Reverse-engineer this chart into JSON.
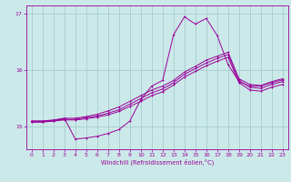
{
  "xlabel": "Windchill (Refroidissement éolien,°C)",
  "bg_color": "#cce9e9",
  "grid_color": "#aad0d0",
  "line_color": "#990099",
  "xlim": [
    -0.5,
    23.5
  ],
  "ylim": [
    14.6,
    17.15
  ],
  "yticks": [
    15,
    16,
    17
  ],
  "xticks": [
    0,
    1,
    2,
    3,
    4,
    5,
    6,
    7,
    8,
    9,
    10,
    11,
    12,
    13,
    14,
    15,
    16,
    17,
    18,
    19,
    20,
    21,
    22,
    23
  ],
  "series": [
    {
      "x": [
        0,
        1,
        2,
        3,
        4,
        5,
        6,
        7,
        8,
        9,
        10,
        11,
        12,
        13,
        14,
        15,
        16,
        17,
        18,
        19,
        20,
        21,
        22,
        23
      ],
      "y": [
        15.1,
        15.1,
        15.1,
        15.15,
        14.78,
        14.8,
        14.83,
        14.88,
        14.95,
        15.1,
        15.48,
        15.72,
        15.82,
        16.63,
        16.95,
        16.82,
        16.92,
        16.62,
        16.1,
        15.8,
        15.72,
        15.72,
        15.78,
        15.83
      ]
    },
    {
      "x": [
        0,
        1,
        2,
        3,
        4,
        5,
        6,
        7,
        8,
        9,
        10,
        11,
        12,
        13,
        14,
        15,
        16,
        17,
        18,
        19,
        20,
        21,
        22,
        23
      ],
      "y": [
        15.1,
        15.1,
        15.12,
        15.15,
        15.15,
        15.18,
        15.22,
        15.28,
        15.35,
        15.45,
        15.55,
        15.65,
        15.72,
        15.82,
        15.97,
        16.07,
        16.18,
        16.25,
        16.32,
        15.85,
        15.75,
        15.73,
        15.8,
        15.85
      ]
    },
    {
      "x": [
        0,
        1,
        2,
        3,
        4,
        5,
        6,
        7,
        8,
        9,
        10,
        11,
        12,
        13,
        14,
        15,
        16,
        17,
        18,
        19,
        20,
        21,
        22,
        23
      ],
      "y": [
        15.08,
        15.09,
        15.11,
        15.13,
        15.13,
        15.16,
        15.19,
        15.24,
        15.3,
        15.4,
        15.5,
        15.6,
        15.67,
        15.78,
        15.93,
        16.03,
        16.13,
        16.21,
        16.28,
        15.82,
        15.7,
        15.68,
        15.75,
        15.8
      ]
    },
    {
      "x": [
        0,
        1,
        2,
        3,
        4,
        5,
        6,
        7,
        8,
        9,
        10,
        11,
        12,
        13,
        14,
        15,
        16,
        17,
        18,
        19,
        20,
        21,
        22,
        23
      ],
      "y": [
        15.08,
        15.08,
        15.1,
        15.12,
        15.12,
        15.14,
        15.17,
        15.21,
        15.27,
        15.36,
        15.45,
        15.55,
        15.62,
        15.74,
        15.88,
        15.98,
        16.08,
        16.16,
        16.23,
        15.78,
        15.65,
        15.63,
        15.7,
        15.75
      ]
    }
  ]
}
